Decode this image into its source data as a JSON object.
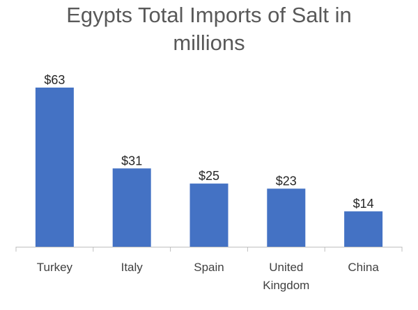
{
  "chart_data": {
    "type": "bar",
    "title": "Egypts Total Imports of Salt in millions",
    "categories": [
      "Turkey",
      "Italy",
      "Spain",
      "United Kingdom",
      "China"
    ],
    "values": [
      63,
      31,
      25,
      23,
      14
    ],
    "data_labels": [
      "$63",
      "$31",
      "$25",
      "$23",
      "$14"
    ],
    "xlabel": "",
    "ylabel": "",
    "ylim": [
      0,
      70
    ],
    "grid": false,
    "legend": "none",
    "bar_color": "#4472c4"
  }
}
